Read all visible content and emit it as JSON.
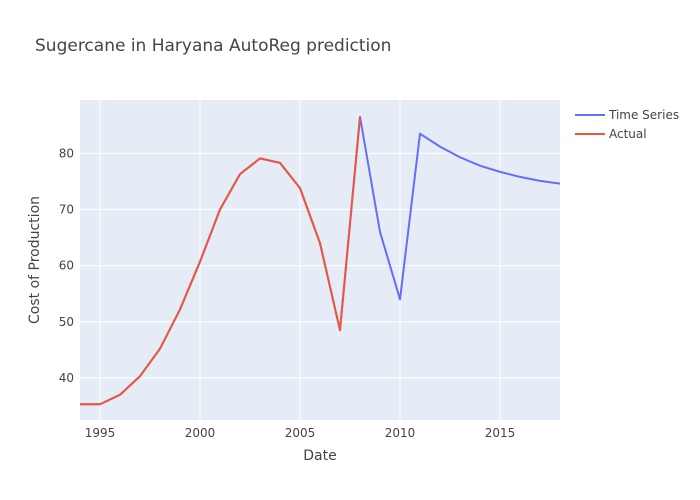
{
  "chart_data": {
    "type": "line",
    "title": "Sugercane in Haryana AutoReg prediction",
    "xlabel": "Date",
    "ylabel": "Cost of Production",
    "xlim": [
      1994,
      2018
    ],
    "ylim": [
      32.5,
      89.5
    ],
    "x_ticks": [
      1995,
      2000,
      2005,
      2010,
      2015
    ],
    "y_ticks": [
      40,
      50,
      60,
      70,
      80
    ],
    "grid": true,
    "plot_background": "#e5ecf6",
    "legend_position": "top-right",
    "series": [
      {
        "name": "Time Series",
        "color": "#636efa",
        "x": [
          1994,
          1995,
          1996,
          1997,
          1998,
          1999,
          2000,
          2001,
          2002,
          2003,
          2004,
          2005,
          2006,
          2007,
          2008,
          2009,
          2010,
          2011,
          2012,
          2013,
          2014,
          2015,
          2016,
          2017,
          2018
        ],
        "y": [
          35.3,
          35.3,
          37.0,
          40.3,
          45.2,
          52.2,
          60.7,
          70.0,
          76.3,
          79.1,
          78.3,
          73.8,
          64.0,
          48.5,
          86.5,
          66.0,
          54.0,
          83.5,
          81.2,
          79.3,
          77.8,
          76.7,
          75.8,
          75.1,
          74.6
        ]
      },
      {
        "name": "Actual",
        "color": "#ef553b",
        "x": [
          1994,
          1995,
          1996,
          1997,
          1998,
          1999,
          2000,
          2001,
          2002,
          2003,
          2004,
          2005,
          2006,
          2007,
          2008
        ],
        "y": [
          35.3,
          35.3,
          37.0,
          40.3,
          45.2,
          52.2,
          60.7,
          70.0,
          76.3,
          79.1,
          78.3,
          73.8,
          64.0,
          48.5,
          86.5
        ]
      }
    ]
  }
}
